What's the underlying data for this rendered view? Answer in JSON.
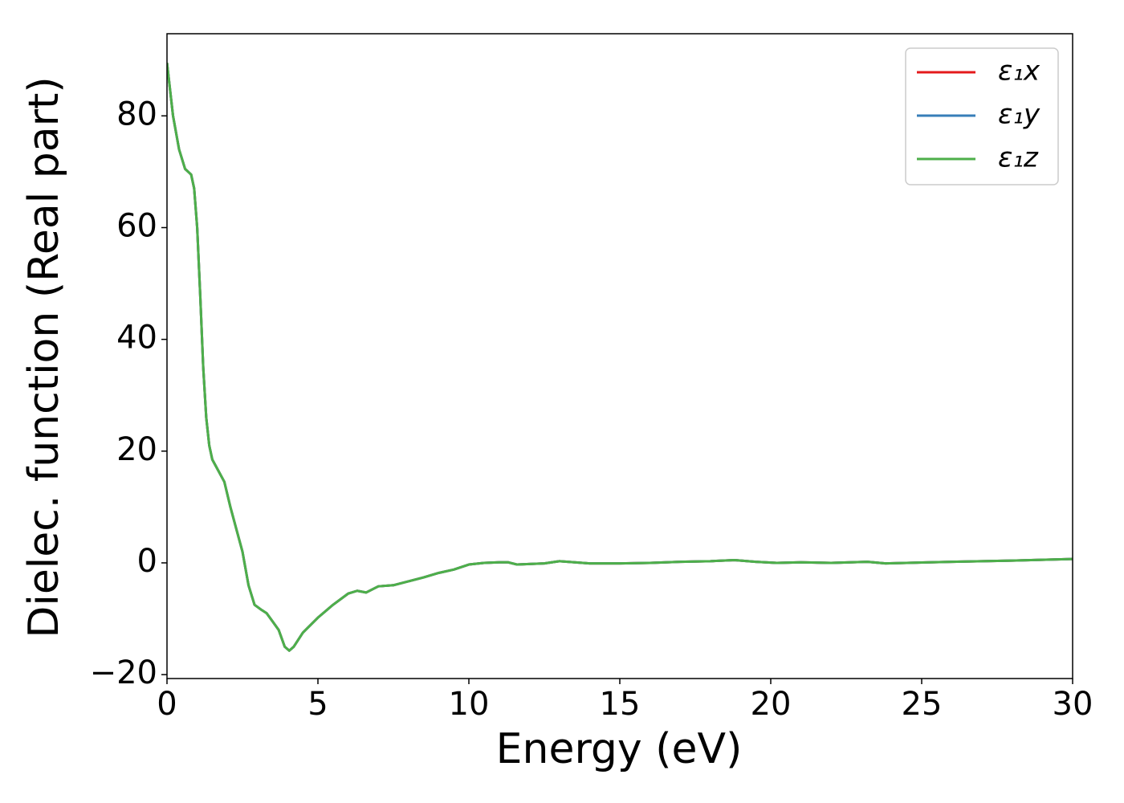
{
  "chart_data": {
    "type": "line",
    "xlabel": "Energy (eV)",
    "ylabel": "Dielec. function (Real part)",
    "x": [
      0,
      0.2,
      0.4,
      0.6,
      0.8,
      0.9,
      1.0,
      1.1,
      1.2,
      1.3,
      1.4,
      1.5,
      1.7,
      1.9,
      2.1,
      2.3,
      2.5,
      2.7,
      2.9,
      3.1,
      3.3,
      3.5,
      3.7,
      3.9,
      4.05,
      4.2,
      4.5,
      5.0,
      5.5,
      6.0,
      6.3,
      6.6,
      7.0,
      7.5,
      8.0,
      8.5,
      9.0,
      9.5,
      10.0,
      10.5,
      11.0,
      11.3,
      11.6,
      12.0,
      12.5,
      13.0,
      13.5,
      14.0,
      15,
      16,
      17,
      18,
      18.8,
      19.5,
      20.2,
      21,
      22,
      23.2,
      23.8,
      24.5,
      26,
      28,
      30
    ],
    "series": [
      {
        "name": "ε₁x",
        "color": "#e41a1c",
        "values": [
          89.5,
          80,
          74,
          70.5,
          69.5,
          67,
          60,
          48,
          35,
          26,
          21,
          18.5,
          16.5,
          14.5,
          10,
          6,
          2,
          -4,
          -7.5,
          -8.3,
          -9,
          -10.5,
          -12,
          -15,
          -15.7,
          -15,
          -12.5,
          -9.8,
          -7.5,
          -5.5,
          -5,
          -5.3,
          -4.2,
          -4,
          -3.3,
          -2.6,
          -1.8,
          -1.2,
          -0.3,
          0,
          0.1,
          0.1,
          -0.3,
          -0.2,
          -0.1,
          0.3,
          0.1,
          -0.1,
          -0.1,
          0,
          0.2,
          0.3,
          0.5,
          0.2,
          0,
          0.1,
          0,
          0.2,
          -0.1,
          0,
          0.2,
          0.4,
          0.7
        ]
      },
      {
        "name": "ε₁y",
        "color": "#377eb8",
        "values": [
          89.5,
          80,
          74,
          70.5,
          69.5,
          67,
          60,
          48,
          35,
          26,
          21,
          18.5,
          16.5,
          14.5,
          10,
          6,
          2,
          -4,
          -7.5,
          -8.3,
          -9,
          -10.5,
          -12,
          -15,
          -15.7,
          -15,
          -12.5,
          -9.8,
          -7.5,
          -5.5,
          -5,
          -5.3,
          -4.2,
          -4,
          -3.3,
          -2.6,
          -1.8,
          -1.2,
          -0.3,
          0,
          0.1,
          0.1,
          -0.3,
          -0.2,
          -0.1,
          0.3,
          0.1,
          -0.1,
          -0.1,
          0,
          0.2,
          0.3,
          0.5,
          0.2,
          0,
          0.1,
          0,
          0.2,
          -0.1,
          0,
          0.2,
          0.4,
          0.7
        ]
      },
      {
        "name": "ε₁z",
        "color": "#4daf4a",
        "values": [
          89.5,
          80,
          74,
          70.5,
          69.5,
          67,
          60,
          48,
          35,
          26,
          21,
          18.5,
          16.5,
          14.5,
          10,
          6,
          2,
          -4,
          -7.5,
          -8.3,
          -9,
          -10.5,
          -12,
          -15,
          -15.7,
          -15,
          -12.5,
          -9.8,
          -7.5,
          -5.5,
          -5,
          -5.3,
          -4.2,
          -4,
          -3.3,
          -2.6,
          -1.8,
          -1.2,
          -0.3,
          0,
          0.1,
          0.1,
          -0.3,
          -0.2,
          -0.1,
          0.3,
          0.1,
          -0.1,
          -0.1,
          0,
          0.2,
          0.3,
          0.5,
          0.2,
          0,
          0.1,
          0,
          0.2,
          -0.1,
          0,
          0.2,
          0.4,
          0.7
        ]
      }
    ],
    "xlim": [
      0,
      30
    ],
    "xticks": [
      0,
      5,
      10,
      15,
      20,
      25,
      30
    ],
    "ylim": [
      -20.7,
      94.7
    ],
    "yticks": [
      {
        "value": -20,
        "label": "−20"
      },
      0,
      20,
      40,
      60,
      80
    ],
    "legend": "upper right",
    "grid": false
  }
}
